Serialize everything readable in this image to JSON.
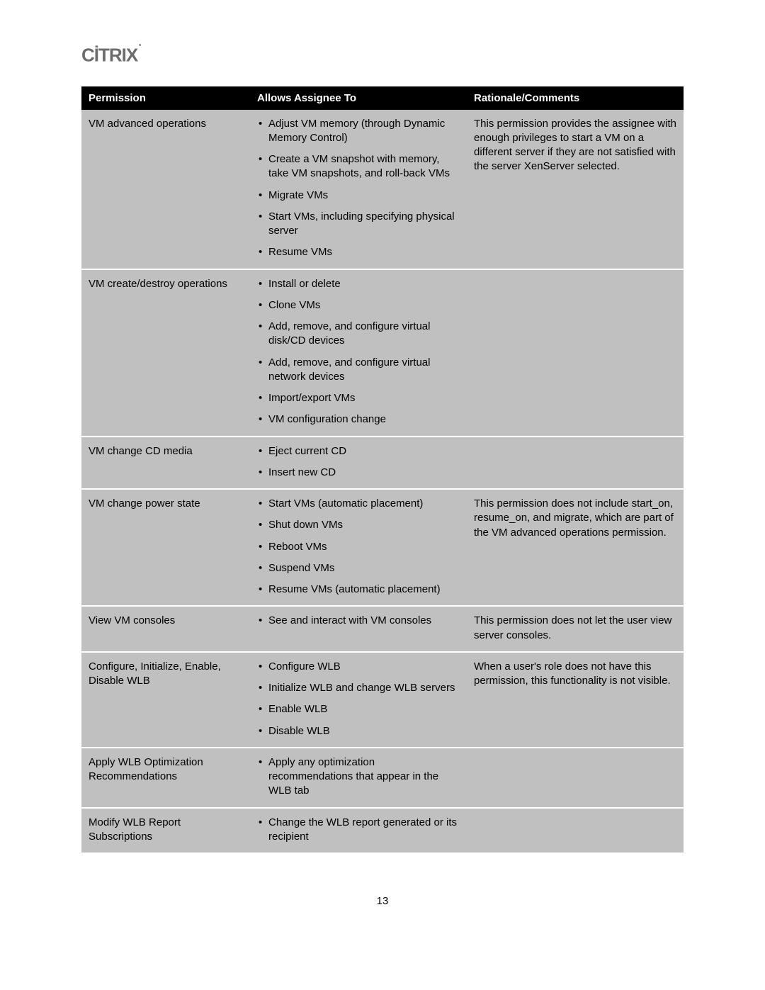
{
  "brand": {
    "logo_text": "CİTRIX"
  },
  "table": {
    "headers": {
      "permission": "Permission",
      "allows": "Allows Assignee To",
      "rationale": "Rationale/Comments"
    },
    "rows": [
      {
        "permission": "VM advanced operations",
        "allows": [
          "Adjust VM memory (through Dynamic Memory Control)",
          "Create a VM snapshot with memory, take VM snapshots, and roll-back VMs",
          "Migrate VMs",
          "Start VMs, including specifying physical server",
          "Resume VMs"
        ],
        "rationale": "This permission provides the assignee with enough privileges to start a VM on a different server if they are not satisfied with the server XenServer selected."
      },
      {
        "permission": "VM create/destroy operations",
        "allows": [
          "Install or delete",
          "Clone VMs",
          "Add, remove, and configure virtual disk/CD devices",
          "Add, remove, and configure virtual network devices",
          "Import/export VMs",
          "VM configuration change"
        ],
        "rationale": ""
      },
      {
        "permission": "VM change CD media",
        "allows": [
          "Eject current CD",
          "Insert new CD"
        ],
        "rationale": ""
      },
      {
        "permission": "VM change power state",
        "allows": [
          "Start VMs (automatic placement)",
          "Shut down VMs",
          "Reboot VMs",
          "Suspend VMs",
          "Resume VMs (automatic placement)"
        ],
        "rationale": "This permission does not include start_on, resume_on, and migrate, which are part of the VM advanced operations permission."
      },
      {
        "permission": "View VM consoles",
        "allows": [
          "See and interact with VM consoles"
        ],
        "rationale": "This permission does not let the user view server consoles."
      },
      {
        "permission": "Configure, Initialize, Enable, Disable WLB",
        "allows": [
          "Configure WLB",
          "Initialize WLB and change WLB servers",
          "Enable WLB",
          "Disable WLB"
        ],
        "rationale": "When a user's role does not have this permission, this functionality is not visible."
      },
      {
        "permission": "Apply WLB Optimization Recommendations",
        "allows": [
          "Apply any optimization recommendations that appear in the WLB tab"
        ],
        "rationale": ""
      },
      {
        "permission": "Modify WLB Report Subscriptions",
        "allows": [
          "Change the WLB report generated or its recipient"
        ],
        "rationale": ""
      }
    ]
  },
  "page_number": "13",
  "colors": {
    "header_bg": "#000000",
    "header_fg": "#ffffff",
    "cell_bg": "#c0c0c0",
    "cell_border": "#ffffff",
    "text": "#000000",
    "logo": "#6d6d6d"
  }
}
